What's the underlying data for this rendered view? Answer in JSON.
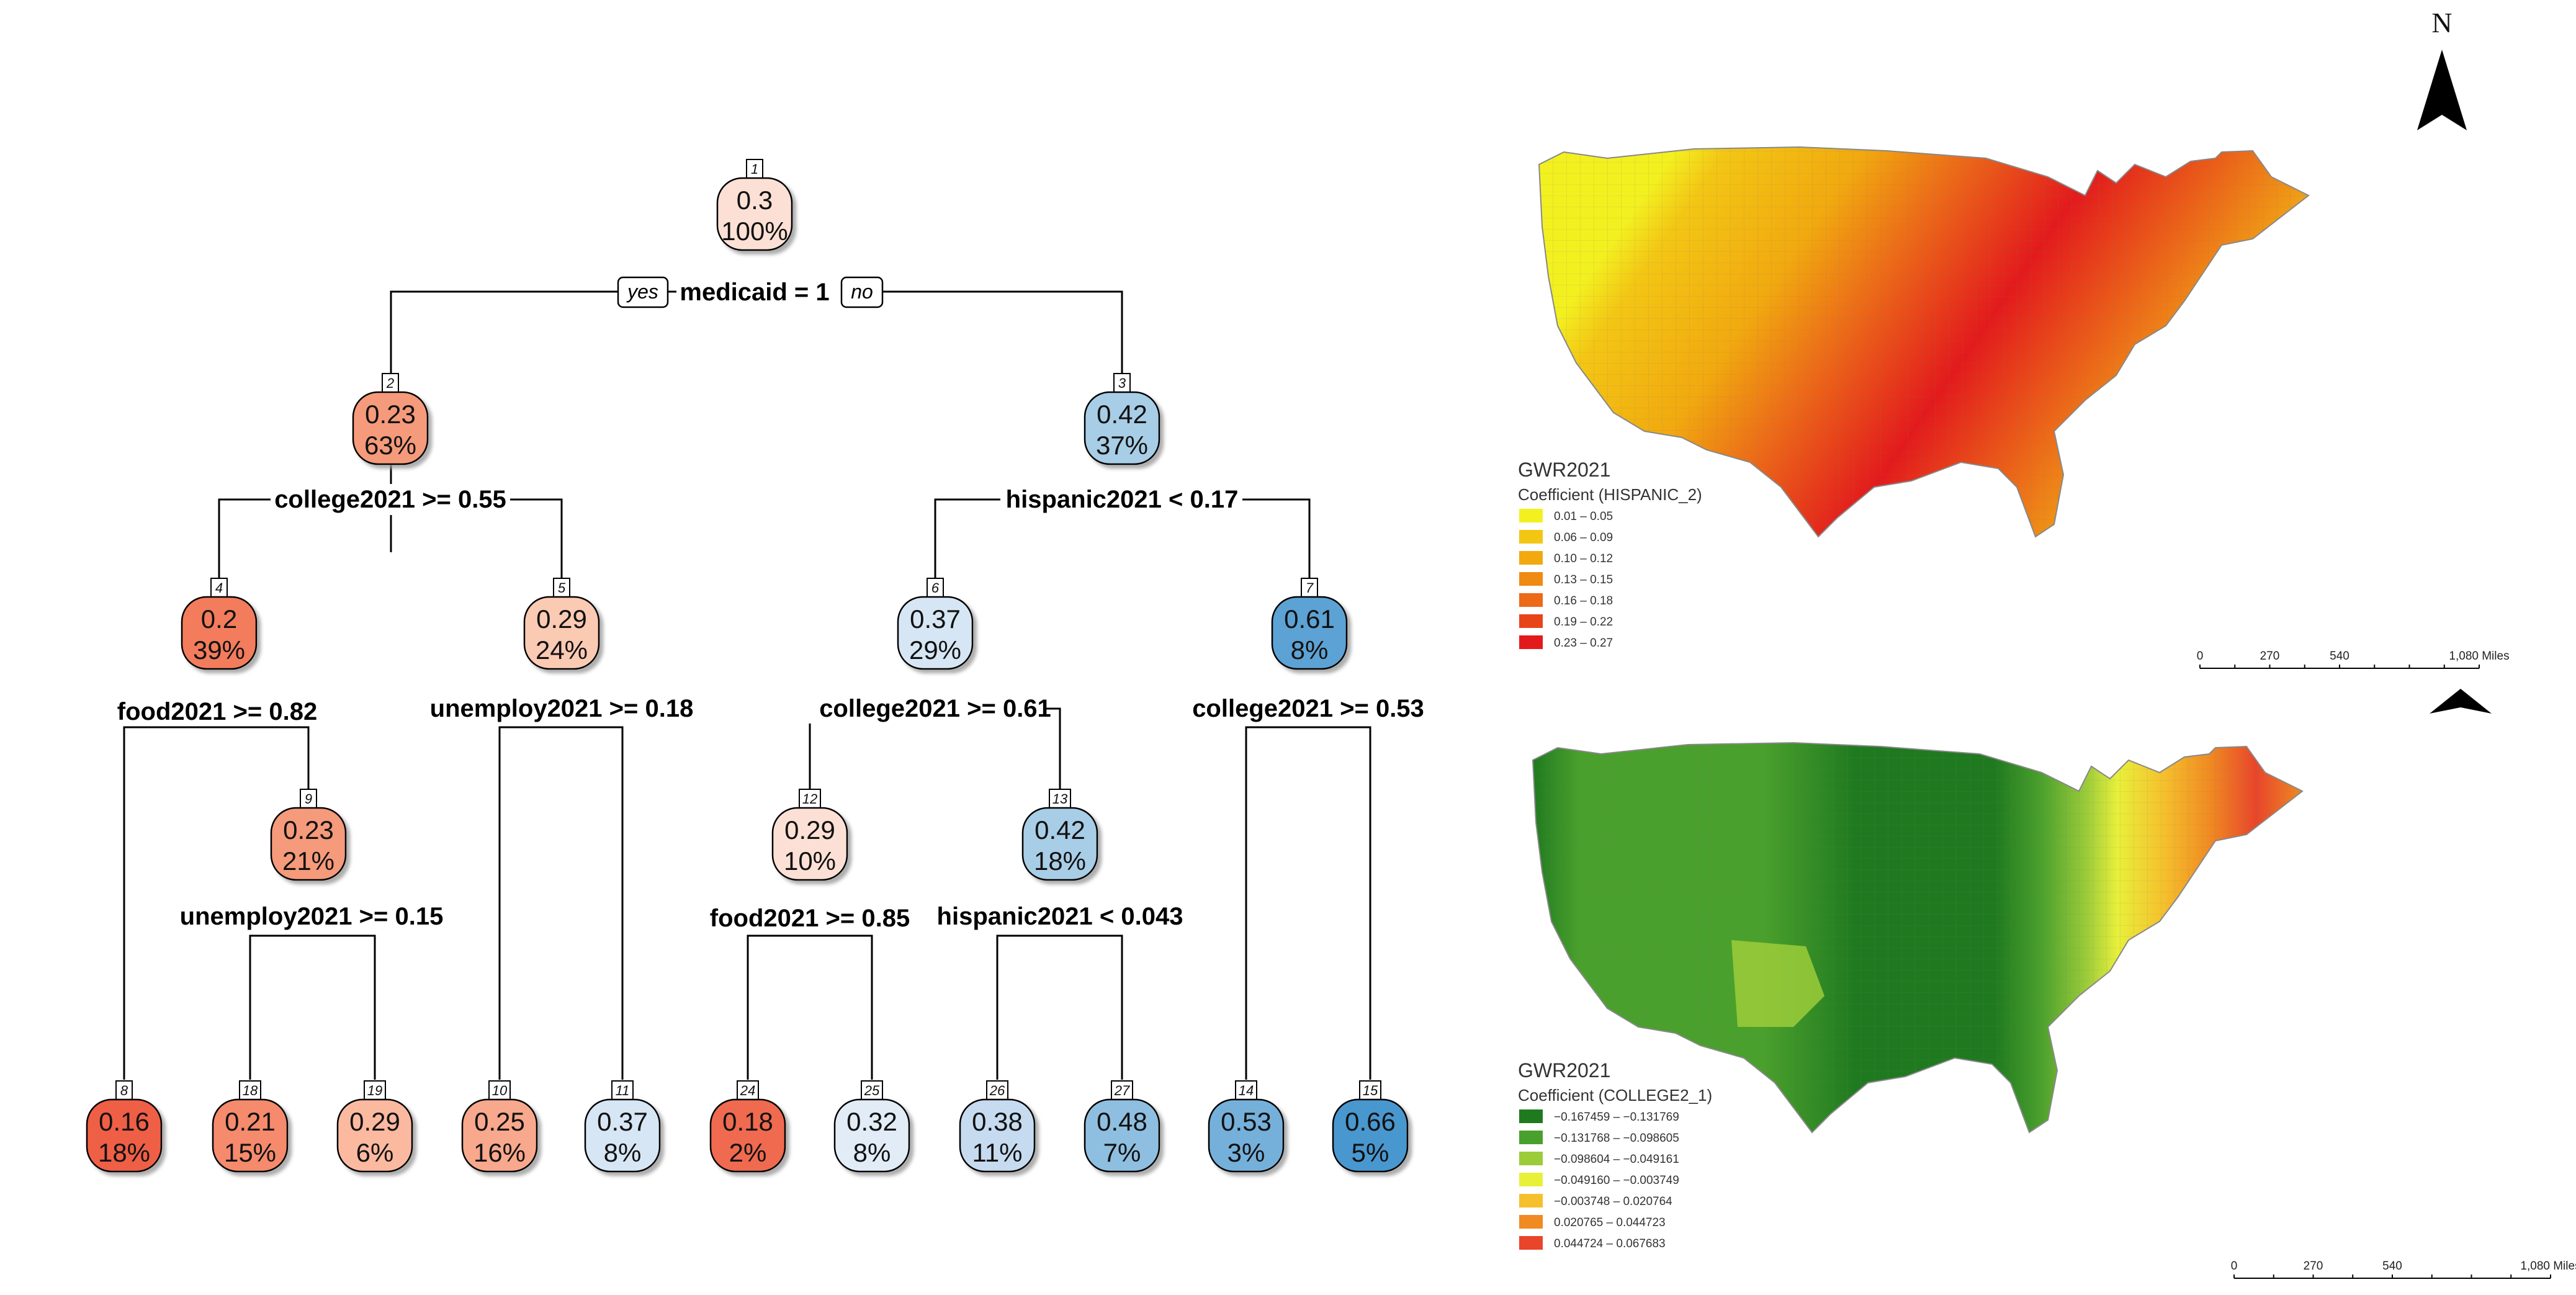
{
  "tree": {
    "nodes": [
      {
        "id": "1",
        "value": "0.3",
        "pct": "100%",
        "color": "#fde0d5"
      },
      {
        "id": "2",
        "value": "0.23",
        "pct": "63%",
        "color": "#f59a7a"
      },
      {
        "id": "3",
        "value": "0.42",
        "pct": "37%",
        "color": "#a8cde6"
      },
      {
        "id": "4",
        "value": "0.2",
        "pct": "39%",
        "color": "#f27b5c"
      },
      {
        "id": "5",
        "value": "0.29",
        "pct": "24%",
        "color": "#fbcab3"
      },
      {
        "id": "6",
        "value": "0.37",
        "pct": "29%",
        "color": "#d6e6f4"
      },
      {
        "id": "7",
        "value": "0.61",
        "pct": "8%",
        "color": "#5ba2d4"
      },
      {
        "id": "9",
        "value": "0.23",
        "pct": "21%",
        "color": "#f59a7a"
      },
      {
        "id": "12",
        "value": "0.29",
        "pct": "10%",
        "color": "#fde0d5"
      },
      {
        "id": "13",
        "value": "0.42",
        "pct": "18%",
        "color": "#a8cde6"
      },
      {
        "id": "8",
        "value": "0.16",
        "pct": "18%",
        "color": "#ee5e45"
      },
      {
        "id": "18",
        "value": "0.21",
        "pct": "15%",
        "color": "#f58a6c"
      },
      {
        "id": "19",
        "value": "0.29",
        "pct": "6%",
        "color": "#fbb9a0"
      },
      {
        "id": "10",
        "value": "0.25",
        "pct": "16%",
        "color": "#f8a88c"
      },
      {
        "id": "11",
        "value": "0.37",
        "pct": "8%",
        "color": "#d6e6f4"
      },
      {
        "id": "24",
        "value": "0.18",
        "pct": "2%",
        "color": "#ef6b50"
      },
      {
        "id": "25",
        "value": "0.32",
        "pct": "8%",
        "color": "#e1ecf7"
      },
      {
        "id": "26",
        "value": "0.38",
        "pct": "11%",
        "color": "#c6dbef"
      },
      {
        "id": "27",
        "value": "0.48",
        "pct": "7%",
        "color": "#8fbfe0"
      },
      {
        "id": "14",
        "value": "0.53",
        "pct": "3%",
        "color": "#74b0da"
      },
      {
        "id": "15",
        "value": "0.66",
        "pct": "5%",
        "color": "#4a97cf"
      }
    ],
    "splits": {
      "root": "medicaid = 1",
      "yes": "yes",
      "no": "no",
      "s2": "college2021 >= 0.55",
      "s3": "hispanic2021 < 0.17",
      "s4": "food2021 >= 0.82",
      "s5": "unemploy2021 >= 0.18",
      "s6": "college2021 >= 0.61",
      "s7": "college2021 >= 0.53",
      "s9": "unemploy2021 >= 0.15",
      "s12": "food2021 >= 0.85",
      "s13": "hispanic2021 < 0.043"
    }
  },
  "maps": {
    "north_label": "N",
    "map1": {
      "title": "GWR2021",
      "subtitle": "Coefficient (HISPANIC_2)",
      "classes": [
        {
          "label": "0.01 – 0.05",
          "color": "#f3f020"
        },
        {
          "label": "0.06 – 0.09",
          "color": "#f3c614"
        },
        {
          "label": "0.10 – 0.12",
          "color": "#f1a90f"
        },
        {
          "label": "0.13 – 0.15",
          "color": "#ef8a12"
        },
        {
          "label": "0.16 – 0.18",
          "color": "#ec6a18"
        },
        {
          "label": "0.19 – 0.22",
          "color": "#e8441a"
        },
        {
          "label": "0.23 – 0.27",
          "color": "#e31a1c"
        }
      ],
      "scale": {
        "labels": [
          "0",
          "270",
          "540",
          "1,080 Miles"
        ]
      }
    },
    "map2": {
      "title": "GWR2021",
      "subtitle": "Coefficient (COLLEGE2_1)",
      "classes": [
        {
          "label": "−0.167459 – −0.131769",
          "color": "#1f7a1f"
        },
        {
          "label": "−0.131768 – −0.098605",
          "color": "#4aa02c"
        },
        {
          "label": "−0.098604 – −0.049161",
          "color": "#9ccc3a"
        },
        {
          "label": "−0.049160 – −0.003749",
          "color": "#e8f03a"
        },
        {
          "label": "−0.003748 – 0.020764",
          "color": "#f5c02c"
        },
        {
          "label": "0.020765 – 0.044723",
          "color": "#f08a22"
        },
        {
          "label": "0.044724 – 0.067683",
          "color": "#e8452a"
        }
      ],
      "scale": {
        "labels": [
          "0",
          "270",
          "540",
          "1,080 Miles"
        ]
      }
    }
  }
}
